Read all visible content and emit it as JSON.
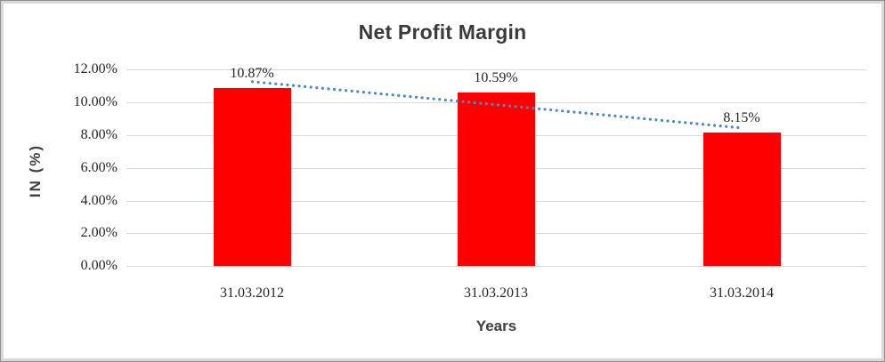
{
  "chart_data": {
    "type": "bar",
    "title": "Net Profit Margin",
    "xlabel": "Years",
    "ylabel": "IN (%)",
    "categories": [
      "31.03.2012",
      "31.03.2013",
      "31.03.2014"
    ],
    "values": [
      10.87,
      10.59,
      8.15
    ],
    "data_labels": [
      "10.87%",
      "10.59%",
      "8.15%"
    ],
    "yticks": [
      "12.00%",
      "10.00%",
      "8.00%",
      "6.00%",
      "4.00%",
      "2.00%",
      "0.00%"
    ],
    "ylim": [
      0,
      12
    ],
    "grid": true,
    "legend": "none",
    "bar_color": "#ff0000",
    "gridline_color": "#d9d9d9",
    "title_color": "#3a3a3a",
    "trendline": {
      "style": "dotted",
      "color": "#4a8ac6",
      "start_value": 11.25,
      "end_value": 8.42
    }
  }
}
